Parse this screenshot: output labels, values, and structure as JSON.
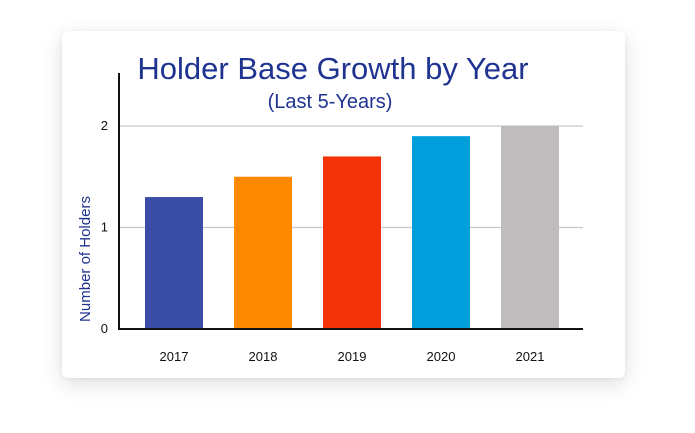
{
  "chart_data": {
    "type": "bar",
    "title": "Holder Base Growth by Year",
    "subtitle": "(Last 5-Years)",
    "xlabel": "",
    "ylabel": "Number of Holders",
    "categories": [
      "2017",
      "2018",
      "2019",
      "2020",
      "2021"
    ],
    "values": [
      1.3,
      1.5,
      1.7,
      1.9,
      2.0
    ],
    "colors": [
      "#3a4ea8",
      "#ff8a00",
      "#f33207",
      "#009fdc",
      "#c0bcbd"
    ],
    "ylim": [
      0,
      2.4
    ],
    "yticks": [
      0,
      1,
      2
    ],
    "grid": true,
    "legend": "none"
  }
}
